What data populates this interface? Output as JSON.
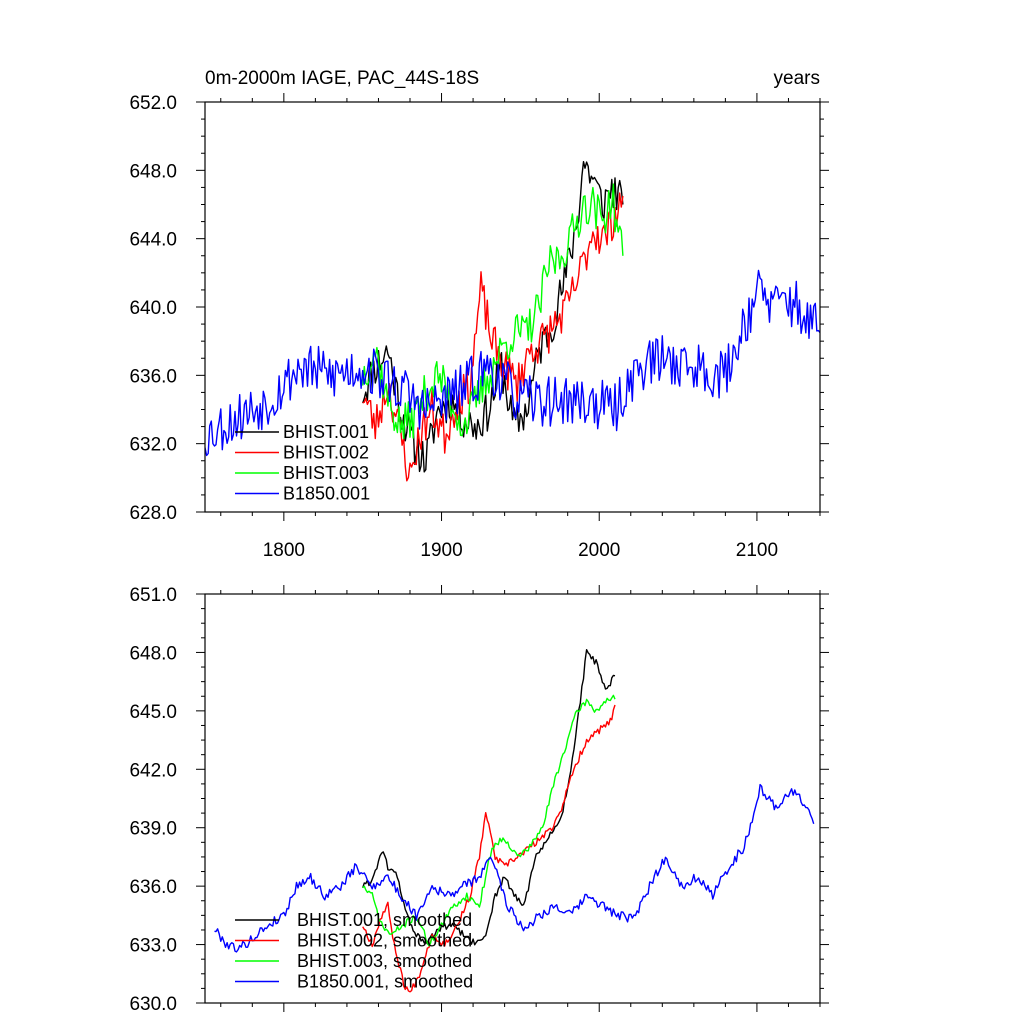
{
  "chart_data": [
    {
      "type": "line",
      "title": "0m-2000m IAGE, PAC_44S-18S",
      "title_right": "years",
      "xlim": [
        1750,
        2140
      ],
      "ylim": [
        628,
        652
      ],
      "xticks": [
        1800,
        1900,
        2000,
        2100
      ],
      "xtick_labels": [
        "1800",
        "1900",
        "2000",
        "2100"
      ],
      "yticks": [
        628,
        632,
        636,
        640,
        644,
        648,
        652
      ],
      "ytick_labels": [
        "628.0",
        "632.0",
        "636.0",
        "640.0",
        "644.0",
        "648.0",
        "652.0"
      ],
      "grid": false,
      "legend_placement": "bottom-left",
      "series": [
        {
          "name": "BHIST.001",
          "color": "#000000",
          "noise": 1.2,
          "seed": 11,
          "x": [
            1850,
            1858,
            1866,
            1874,
            1882,
            1890,
            1898,
            1906,
            1914,
            1922,
            1930,
            1938,
            1946,
            1954,
            1962,
            1970,
            1978,
            1986,
            1990,
            1996,
            2002,
            2008,
            2015
          ],
          "y": [
            635.0,
            636.5,
            637.5,
            634.0,
            632.0,
            631.0,
            634.0,
            634.5,
            633.5,
            633.0,
            634.0,
            636.5,
            633.0,
            634.0,
            637.5,
            639.0,
            641.5,
            645.0,
            648.5,
            647.5,
            646.0,
            647.0,
            646.0
          ]
        },
        {
          "name": "BHIST.002",
          "color": "#ff0000",
          "noise": 1.2,
          "seed": 23,
          "x": [
            1850,
            1858,
            1866,
            1874,
            1880,
            1886,
            1894,
            1902,
            1910,
            1918,
            1925,
            1932,
            1940,
            1948,
            1956,
            1964,
            1972,
            1980,
            1988,
            1996,
            2004,
            2010,
            2015
          ],
          "y": [
            635.0,
            633.0,
            635.5,
            632.5,
            630.0,
            632.5,
            634.0,
            632.5,
            634.5,
            635.5,
            641.0,
            638.0,
            636.5,
            635.5,
            637.5,
            638.0,
            639.0,
            640.0,
            642.0,
            644.5,
            644.0,
            645.5,
            646.5
          ]
        },
        {
          "name": "BHIST.003",
          "color": "#00ff00",
          "noise": 1.2,
          "seed": 37,
          "x": [
            1850,
            1858,
            1866,
            1874,
            1882,
            1890,
            1898,
            1906,
            1914,
            1922,
            1930,
            1938,
            1946,
            1954,
            1962,
            1968,
            1976,
            1984,
            1990,
            1996,
            2002,
            2008,
            2015
          ],
          "y": [
            636.0,
            637.5,
            634.5,
            633.0,
            633.5,
            635.0,
            636.0,
            634.5,
            633.0,
            634.5,
            636.0,
            637.5,
            638.5,
            638.5,
            640.0,
            642.5,
            643.0,
            644.5,
            646.0,
            646.0,
            645.0,
            646.5,
            643.0
          ]
        },
        {
          "name": "B1850.001",
          "color": "#0000ff",
          "noise": 1.5,
          "seed": 53,
          "x": [
            1750,
            1770,
            1790,
            1800,
            1810,
            1830,
            1850,
            1870,
            1890,
            1910,
            1930,
            1950,
            1970,
            1990,
            2010,
            2025,
            2040,
            2060,
            2080,
            2090,
            2100,
            2110,
            2120,
            2130,
            2140
          ],
          "y": [
            632.5,
            633.5,
            634.5,
            635.5,
            636.5,
            636.0,
            636.5,
            635.5,
            634.0,
            635.0,
            636.5,
            634.5,
            634.5,
            634.5,
            634.0,
            636.5,
            637.0,
            636.5,
            636.0,
            638.5,
            641.0,
            640.0,
            640.5,
            639.5,
            638.5
          ]
        }
      ]
    },
    {
      "type": "line",
      "xlim": [
        1750,
        2140
      ],
      "ylim": [
        630,
        651
      ],
      "xticks": [
        1800,
        1900,
        2000,
        2100
      ],
      "xtick_labels": [],
      "yticks": [
        630,
        633,
        636,
        639,
        642,
        645,
        648,
        651
      ],
      "ytick_labels": [
        "630.0",
        "633.0",
        "636.0",
        "639.0",
        "642.0",
        "645.0",
        "648.0",
        "651.0"
      ],
      "grid": false,
      "legend_placement": "bottom-left",
      "series": [
        {
          "name": "BHIST.001, smoothed",
          "color": "#000000",
          "noise": 0.18,
          "seed": 61,
          "x": [
            1850,
            1856,
            1862,
            1866,
            1872,
            1878,
            1884,
            1890,
            1898,
            1906,
            1914,
            1922,
            1928,
            1934,
            1940,
            1946,
            1952,
            1960,
            1968,
            1976,
            1982,
            1988,
            1992,
            1998,
            2004,
            2010
          ],
          "y": [
            636.0,
            636.3,
            637.8,
            637.0,
            636.5,
            634.5,
            633.5,
            633.0,
            633.8,
            634.0,
            633.5,
            633.0,
            633.5,
            635.5,
            636.5,
            635.5,
            635.0,
            637.5,
            638.5,
            639.5,
            642.0,
            645.5,
            648.0,
            647.5,
            646.0,
            646.8
          ]
        },
        {
          "name": "BHIST.002, smoothed",
          "color": "#ff0000",
          "noise": 0.18,
          "seed": 67,
          "x": [
            1850,
            1856,
            1862,
            1866,
            1870,
            1876,
            1880,
            1886,
            1894,
            1902,
            1910,
            1918,
            1924,
            1928,
            1934,
            1940,
            1948,
            1956,
            1964,
            1970,
            1976,
            1984,
            1992,
            2000,
            2008,
            2010
          ],
          "y": [
            634.0,
            633.0,
            634.5,
            635.0,
            633.0,
            631.0,
            630.5,
            631.5,
            633.5,
            633.0,
            634.0,
            635.5,
            637.5,
            639.8,
            637.5,
            637.0,
            637.5,
            638.0,
            638.5,
            639.0,
            640.0,
            642.0,
            643.5,
            644.0,
            644.5,
            645.3
          ]
        },
        {
          "name": "BHIST.003, smoothed",
          "color": "#00ff00",
          "noise": 0.18,
          "seed": 71,
          "x": [
            1850,
            1856,
            1862,
            1868,
            1876,
            1884,
            1892,
            1900,
            1908,
            1916,
            1924,
            1932,
            1940,
            1948,
            1956,
            1964,
            1972,
            1980,
            1986,
            1992,
            1998,
            2004,
            2008,
            2010
          ],
          "y": [
            636.0,
            635.5,
            634.0,
            633.5,
            634.0,
            634.5,
            633.0,
            634.0,
            635.0,
            635.5,
            635.0,
            638.0,
            638.5,
            637.5,
            638.0,
            639.0,
            641.5,
            643.5,
            645.0,
            645.5,
            645.0,
            645.5,
            645.7,
            645.6
          ]
        },
        {
          "name": "B1850.001, smoothed",
          "color": "#0000ff",
          "noise": 0.25,
          "seed": 79,
          "x": [
            1756,
            1764,
            1772,
            1780,
            1790,
            1800,
            1808,
            1816,
            1826,
            1836,
            1846,
            1856,
            1866,
            1874,
            1884,
            1894,
            1904,
            1914,
            1924,
            1932,
            1942,
            1952,
            1962,
            1972,
            1982,
            1992,
            2002,
            2012,
            2022,
            2032,
            2042,
            2052,
            2062,
            2072,
            2082,
            2092,
            2102,
            2112,
            2122,
            2132,
            2136
          ],
          "y": [
            633.8,
            633.0,
            632.8,
            633.3,
            634.0,
            634.5,
            636.0,
            636.5,
            635.5,
            636.0,
            637.0,
            636.0,
            636.5,
            635.5,
            634.5,
            636.0,
            635.5,
            636.0,
            636.5,
            637.5,
            635.0,
            633.8,
            634.5,
            635.0,
            634.5,
            635.5,
            635.0,
            634.5,
            634.3,
            636.0,
            637.5,
            636.0,
            636.5,
            635.5,
            637.0,
            638.0,
            641.0,
            640.0,
            641.0,
            640.0,
            639.2
          ]
        }
      ]
    }
  ]
}
